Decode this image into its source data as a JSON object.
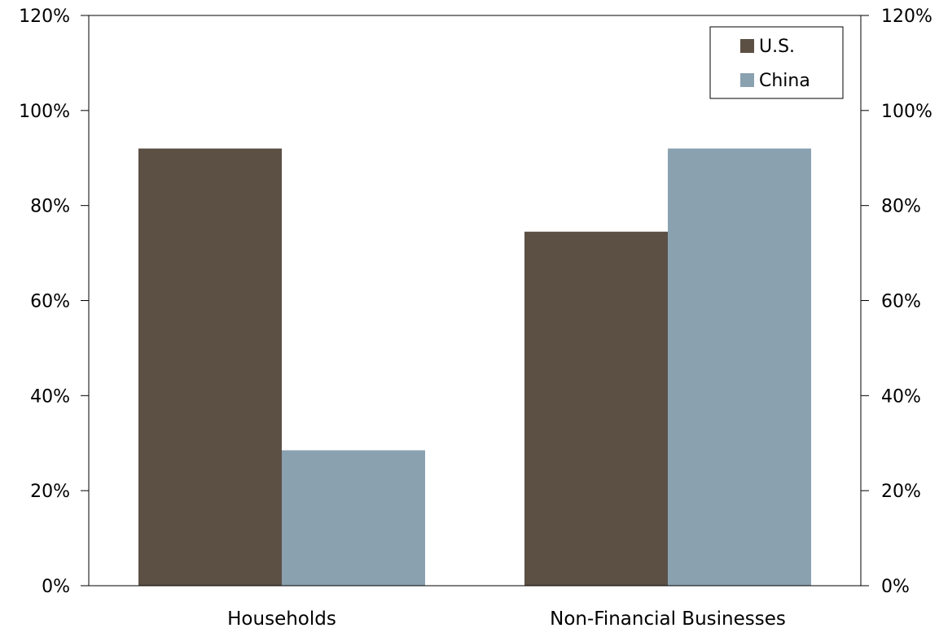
{
  "chart_data": {
    "type": "bar",
    "categories": [
      "Households",
      "Non-Financial Businesses"
    ],
    "series": [
      {
        "name": "U.S.",
        "values": [
          92,
          74.5
        ]
      },
      {
        "name": "China",
        "values": [
          28.5,
          92
        ]
      }
    ],
    "ylim": [
      0,
      120
    ],
    "yticks": [
      "0%",
      "20%",
      "40%",
      "60%",
      "80%",
      "100%",
      "120%"
    ],
    "ytick_values": [
      0,
      20,
      40,
      60,
      80,
      100,
      120
    ],
    "y_axis_both_sides": true,
    "grid": false,
    "legend_position": "top-right",
    "colors": {
      "U.S.": "#5c5045",
      "China": "#8aa1b0",
      "axis": "#000000"
    }
  }
}
